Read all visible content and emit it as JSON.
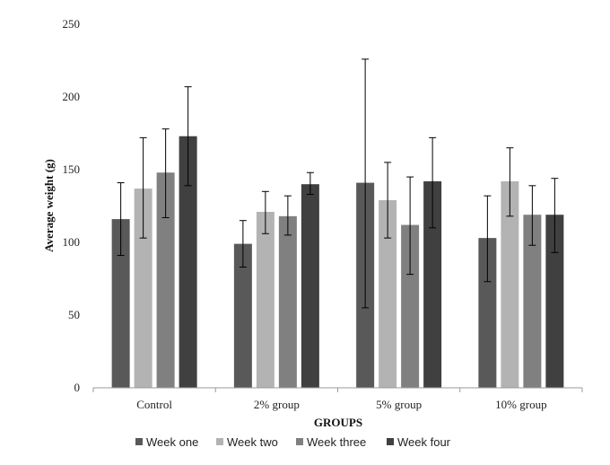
{
  "chart_data": {
    "type": "bar",
    "title": "",
    "xlabel": "GROUPS",
    "ylabel": "Average weight (g)",
    "ylim": [
      0,
      250
    ],
    "yticks": [
      0,
      50,
      100,
      150,
      200,
      250
    ],
    "grid": false,
    "legend_position": "bottom",
    "categories": [
      "Control",
      "2% group",
      "5% group",
      "10% group"
    ],
    "series": [
      {
        "name": "Week one",
        "color": "#595959",
        "values": [
          116,
          99,
          141,
          103
        ],
        "error_low": [
          91,
          83,
          55,
          73
        ],
        "error_high": [
          141,
          115,
          226,
          132
        ]
      },
      {
        "name": "Week two",
        "color": "#b3b3b3",
        "values": [
          137,
          121,
          129,
          142
        ],
        "error_low": [
          103,
          106,
          103,
          118
        ],
        "error_high": [
          172,
          135,
          155,
          165
        ]
      },
      {
        "name": "Week three",
        "color": "#808080",
        "values": [
          148,
          118,
          112,
          119
        ],
        "error_low": [
          117,
          105,
          78,
          98
        ],
        "error_high": [
          178,
          132,
          145,
          139
        ]
      },
      {
        "name": "Week four",
        "color": "#404040",
        "values": [
          173,
          140,
          142,
          119
        ],
        "error_low": [
          139,
          133,
          110,
          93
        ],
        "error_high": [
          207,
          148,
          172,
          144
        ]
      }
    ]
  }
}
